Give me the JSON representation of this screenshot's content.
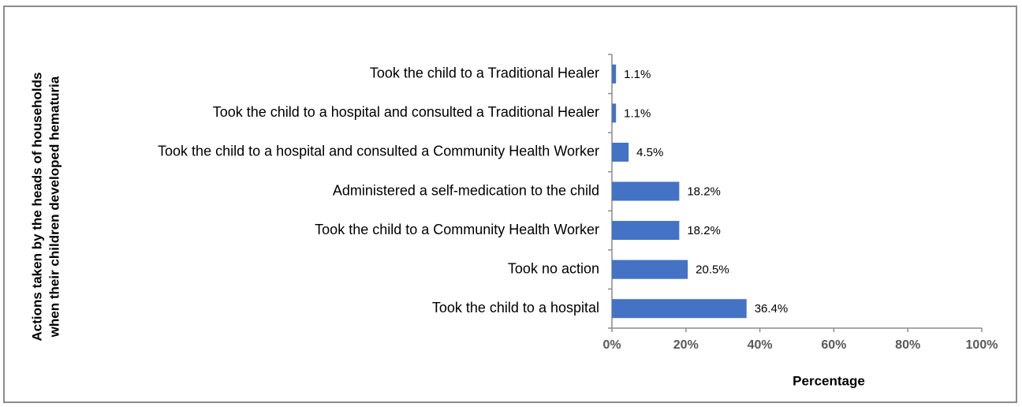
{
  "chart_data": {
    "type": "bar",
    "orientation": "horizontal",
    "categories": [
      "Took the child to a Traditional Healer",
      "Took the child to a hospital and consulted a Traditional Healer",
      "Took the child to a hospital and consulted a Community Health Worker",
      "Administered a self-medication to the child",
      "Took the child to a Community Health Worker",
      "Took no action",
      "Took the child to a hospital"
    ],
    "values": [
      1.1,
      1.1,
      4.5,
      18.2,
      18.2,
      20.5,
      36.4
    ],
    "value_labels": [
      "1.1%",
      "1.1%",
      "4.5%",
      "18.2%",
      "18.2%",
      "20.5%",
      "36.4%"
    ],
    "color": "#4472c4",
    "xlim": [
      0,
      100
    ],
    "xticks": [
      {
        "value": 0,
        "label": "0%"
      },
      {
        "value": 20,
        "label": "20%"
      },
      {
        "value": 40,
        "label": "40%"
      },
      {
        "value": 60,
        "label": "60%"
      },
      {
        "value": 80,
        "label": "80%"
      },
      {
        "value": 100,
        "label": "100%"
      }
    ],
    "xlabel": "Percentage",
    "ylabel": [
      "Actions taken by the heads of households",
      "when their children developed hematuria"
    ],
    "grid": false
  }
}
